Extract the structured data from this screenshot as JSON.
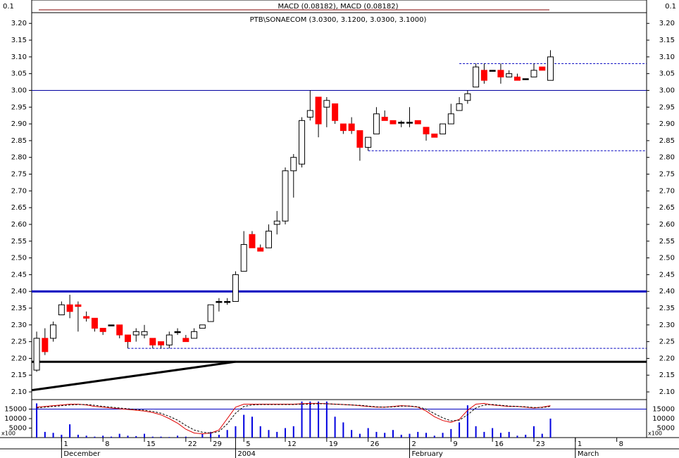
{
  "chart_data": {
    "type": "candlestick",
    "title": "PTB\\SONAECOM (3.0300, 3.1200, 3.0300, 3.1000)",
    "up_color": "#ffffff",
    "down_color": "#ff0000",
    "flat_color": "#000000",
    "ylim": [
      2.077,
      3.232
    ],
    "yticks": [
      {
        "value": 2.1,
        "label": "2.10"
      },
      2.15,
      {
        "value": 2.2,
        "label": "2.20"
      },
      2.25,
      {
        "value": 2.3,
        "label": "2.30"
      },
      2.35,
      {
        "value": 2.4,
        "label": "2.40"
      },
      2.45,
      {
        "value": 2.5,
        "label": "2.50"
      },
      2.55,
      {
        "value": 2.6,
        "label": "2.60"
      },
      2.65,
      {
        "value": 2.7,
        "label": "2.70"
      },
      2.75,
      {
        "value": 2.8,
        "label": "2.80"
      },
      2.85,
      {
        "value": 2.9,
        "label": "2.90"
      },
      2.95,
      {
        "value": 3.0,
        "label": "3.00"
      },
      3.05,
      {
        "value": 3.1,
        "label": "3.10"
      },
      3.15,
      {
        "value": 3.2,
        "label": "3.20"
      }
    ],
    "xlim": [
      -0.6,
      73.6
    ],
    "xticks": [
      {
        "value": 3,
        "label": "1"
      },
      {
        "value": 8,
        "label": "8"
      },
      {
        "value": 13,
        "label": "15"
      },
      {
        "value": 18,
        "label": "22"
      },
      {
        "value": 21,
        "label": "29"
      },
      {
        "value": 25,
        "label": "5"
      },
      {
        "value": 30,
        "label": "12"
      },
      {
        "value": 35,
        "label": "19"
      },
      {
        "value": 40,
        "label": "26"
      },
      {
        "value": 45,
        "label": "2"
      },
      {
        "value": 50,
        "label": "9"
      },
      {
        "value": 55,
        "label": "16"
      },
      {
        "value": 60,
        "label": "23"
      },
      {
        "value": 65,
        "label": "1"
      },
      {
        "value": 70,
        "label": "8"
      }
    ],
    "xmonths": [
      {
        "value": 3,
        "label": "December"
      },
      {
        "value": 24,
        "label": "2004"
      },
      {
        "value": 45,
        "label": "February"
      },
      {
        "value": 65,
        "label": "March"
      }
    ],
    "open": [
      2.165,
      2.26,
      2.26,
      2.33,
      2.36,
      2.36,
      2.325,
      2.32,
      2.29,
      2.3,
      2.3,
      2.27,
      2.27,
      2.27,
      2.26,
      2.25,
      2.24,
      2.28,
      2.26,
      2.26,
      2.29,
      2.31,
      2.37,
      2.37,
      2.37,
      2.46,
      2.57,
      2.53,
      2.53,
      2.6,
      2.61,
      2.76,
      2.78,
      2.92,
      2.98,
      2.95,
      2.96,
      2.9,
      2.9,
      2.88,
      2.83,
      2.87,
      2.92,
      2.91,
      2.905,
      2.905,
      2.91,
      2.89,
      2.87,
      2.87,
      2.9,
      2.94,
      2.97,
      3.01,
      3.06,
      3.06,
      3.06,
      3.04,
      3.04,
      3.035,
      3.04,
      3.07,
      3.03
    ],
    "high": [
      2.28,
      2.29,
      2.31,
      2.37,
      2.39,
      2.37,
      2.34,
      2.32,
      2.29,
      2.3,
      2.3,
      2.27,
      2.29,
      2.3,
      2.26,
      2.25,
      2.28,
      2.29,
      2.27,
      2.29,
      2.3,
      2.36,
      2.38,
      2.38,
      2.46,
      2.58,
      2.58,
      2.54,
      2.6,
      2.64,
      2.77,
      2.81,
      2.92,
      3.0,
      2.98,
      2.98,
      2.96,
      2.9,
      2.92,
      2.88,
      2.86,
      2.95,
      2.94,
      2.91,
      2.91,
      2.95,
      2.91,
      2.89,
      2.87,
      2.9,
      2.96,
      2.98,
      3.0,
      3.08,
      3.08,
      3.06,
      3.08,
      3.06,
      3.05,
      3.035,
      3.08,
      3.07,
      3.12
    ],
    "low": [
      2.16,
      2.21,
      2.25,
      2.33,
      2.32,
      2.28,
      2.31,
      2.28,
      2.27,
      2.3,
      2.26,
      2.23,
      2.25,
      2.26,
      2.23,
      2.23,
      2.23,
      2.27,
      2.25,
      2.26,
      2.29,
      2.31,
      2.34,
      2.36,
      2.37,
      2.46,
      2.53,
      2.52,
      2.53,
      2.57,
      2.6,
      2.68,
      2.77,
      2.91,
      2.86,
      2.89,
      2.9,
      2.87,
      2.87,
      2.79,
      2.82,
      2.87,
      2.91,
      2.9,
      2.89,
      2.89,
      2.9,
      2.85,
      2.86,
      2.87,
      2.9,
      2.94,
      2.96,
      3.01,
      3.02,
      3.06,
      3.02,
      3.04,
      3.03,
      3.035,
      3.04,
      3.06,
      3.03
    ],
    "close": [
      2.26,
      2.22,
      2.3,
      2.36,
      2.34,
      2.355,
      2.32,
      2.29,
      2.28,
      2.3,
      2.27,
      2.25,
      2.28,
      2.28,
      2.24,
      2.24,
      2.27,
      2.28,
      2.25,
      2.28,
      2.3,
      2.36,
      2.37,
      2.37,
      2.45,
      2.54,
      2.53,
      2.52,
      2.58,
      2.61,
      2.76,
      2.8,
      2.91,
      2.94,
      2.9,
      2.97,
      2.91,
      2.88,
      2.88,
      2.83,
      2.86,
      2.93,
      2.91,
      2.9,
      2.905,
      2.905,
      2.9,
      2.87,
      2.86,
      2.9,
      2.93,
      2.96,
      2.99,
      3.07,
      3.03,
      3.06,
      3.04,
      3.05,
      3.03,
      3.035,
      3.06,
      3.06,
      3.1
    ],
    "hlines": [
      {
        "value": 3.0,
        "color": "#0000a0",
        "width": 1
      },
      {
        "value": 2.4,
        "color": "#0000c0",
        "width": 3
      },
      {
        "value": 2.19,
        "color": "#000000",
        "width": 3
      }
    ],
    "dashed_lines": [
      {
        "value": 3.08,
        "from": 51,
        "color": "#0000c0"
      },
      {
        "value": 2.82,
        "from": 40,
        "color": "#0000c0"
      },
      {
        "value": 2.23,
        "from": 11,
        "color": "#0000c0"
      }
    ],
    "trendline": {
      "x": [
        -0.6,
        24
      ],
      "y": [
        2.105,
        2.19
      ],
      "color": "#000000"
    },
    "macd_panel": {
      "label": "MACD (0.08182), MACD (0.08182)",
      "tick": 0.1
    },
    "volume": {
      "ylim": [
        0,
        20000
      ],
      "yticks": [
        5000,
        10000,
        15000
      ],
      "unit_label": "x100",
      "color": "#0000e0",
      "values": [
        18000,
        3000,
        2500,
        1500,
        7000,
        1500,
        1000,
        500,
        1000,
        500,
        2000,
        1000,
        800,
        2000,
        500,
        500,
        300,
        1000,
        500,
        200,
        2000,
        3000,
        1500,
        4000,
        6000,
        12000,
        11000,
        6000,
        4000,
        3000,
        5000,
        6000,
        19000,
        19000,
        19000,
        19000,
        11000,
        8000,
        4000,
        2000,
        5000,
        3000,
        2500,
        4000,
        1500,
        2000,
        3000,
        2500,
        1000,
        2500,
        4500,
        8000,
        17000,
        6000,
        3000,
        5000,
        2500,
        3000,
        1000,
        1500,
        6000,
        2000,
        10000
      ]
    },
    "oscillator": {
      "ylim": [
        0,
        100
      ],
      "series": [
        {
          "color": "#e00000",
          "dashed": false,
          "values": [
            80,
            82,
            84,
            86,
            88,
            88,
            86,
            82,
            80,
            78,
            76,
            74,
            72,
            70,
            66,
            60,
            50,
            38,
            22,
            12,
            10,
            12,
            20,
            50,
            80,
            88,
            88,
            88,
            88,
            88,
            88,
            88,
            89,
            90,
            90,
            89,
            88,
            87,
            86,
            84,
            82,
            80,
            80,
            82,
            84,
            83,
            80,
            70,
            55,
            45,
            40,
            48,
            72,
            88,
            90,
            86,
            84,
            82,
            82,
            80,
            78,
            80,
            84
          ]
        },
        {
          "color": "#000000",
          "dashed": true,
          "values": [
            78,
            80,
            82,
            84,
            86,
            87,
            87,
            85,
            82,
            80,
            78,
            76,
            74,
            72,
            69,
            64,
            56,
            46,
            32,
            20,
            14,
            12,
            16,
            36,
            64,
            82,
            86,
            87,
            87,
            87,
            87,
            87,
            88,
            88,
            89,
            89,
            88,
            87,
            86,
            85,
            83,
            81,
            80,
            81,
            83,
            83,
            81,
            75,
            63,
            52,
            44,
            46,
            60,
            78,
            86,
            87,
            85,
            83,
            82,
            81,
            79,
            79,
            82
          ]
        }
      ]
    }
  }
}
